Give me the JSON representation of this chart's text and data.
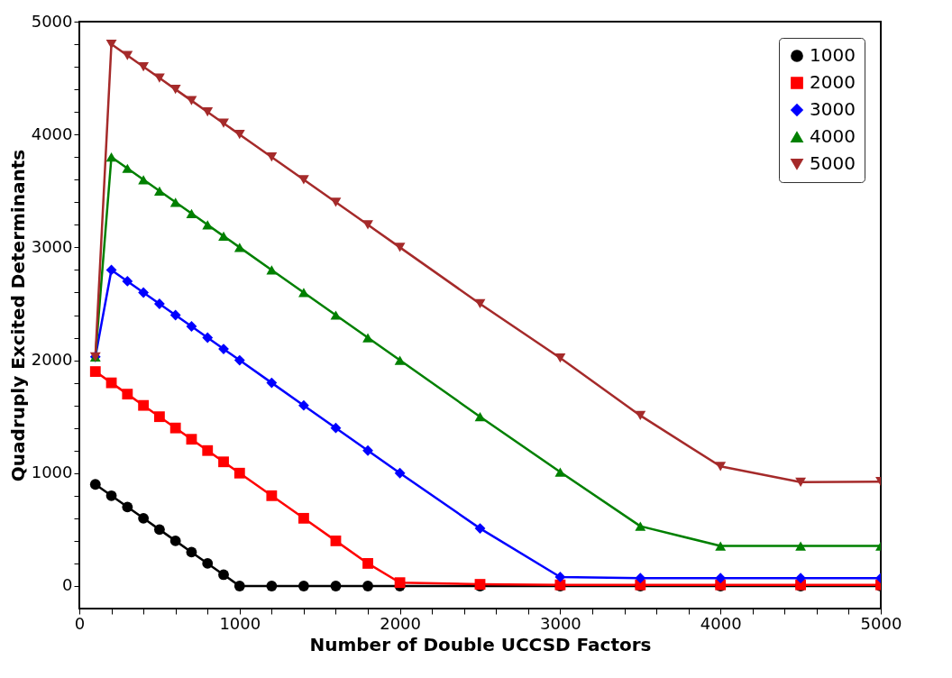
{
  "chart_data": {
    "type": "line",
    "xlabel": "Number of Double UCCSD Factors",
    "ylabel": "Quadruply Excited Determinants",
    "x": [
      100,
      200,
      300,
      400,
      500,
      600,
      700,
      800,
      900,
      1000,
      1200,
      1400,
      1600,
      1800,
      2000,
      2500,
      3000,
      3500,
      4000,
      4500,
      5000
    ],
    "series": [
      {
        "name": "1000",
        "color": "#000000",
        "marker": "circle",
        "values": [
          900,
          800,
          700,
          600,
          500,
          400,
          300,
          200,
          100,
          0,
          0,
          0,
          0,
          0,
          0,
          0,
          0,
          0,
          0,
          0,
          0
        ]
      },
      {
        "name": "2000",
        "color": "#ff0000",
        "marker": "square",
        "values": [
          1900,
          1800,
          1700,
          1600,
          1500,
          1400,
          1300,
          1200,
          1100,
          1000,
          800,
          600,
          400,
          200,
          30,
          15,
          10,
          10,
          10,
          10,
          10
        ]
      },
      {
        "name": "3000",
        "color": "#0000ff",
        "marker": "diamond",
        "values": [
          2030,
          2800,
          2700,
          2600,
          2500,
          2400,
          2300,
          2200,
          2100,
          2000,
          1800,
          1600,
          1400,
          1200,
          1000,
          510,
          80,
          70,
          70,
          70,
          70
        ]
      },
      {
        "name": "4000",
        "color": "#008000",
        "marker": "triangle",
        "values": [
          2030,
          3800,
          3700,
          3600,
          3500,
          3400,
          3300,
          3200,
          3100,
          3000,
          2800,
          2600,
          2400,
          2200,
          2000,
          1500,
          1010,
          530,
          355,
          355,
          355
        ]
      },
      {
        "name": "5000",
        "color": "#a52a2a",
        "marker": "triangle-down",
        "values": [
          2030,
          4800,
          4700,
          4600,
          4500,
          4400,
          4300,
          4200,
          4100,
          4000,
          3800,
          3600,
          3400,
          3200,
          3000,
          2500,
          2020,
          1510,
          1060,
          920,
          925
        ]
      }
    ],
    "xlim": [
      0,
      5000
    ],
    "xticks": [
      0,
      {
        "value": 200,
        "label": null
      },
      {
        "value": 400,
        "label": null
      },
      {
        "value": 600,
        "label": null
      },
      {
        "value": 800,
        "label": null
      },
      1000,
      {
        "value": 1200,
        "label": null
      },
      {
        "value": 1400,
        "label": null
      },
      {
        "value": 1600,
        "label": null
      },
      {
        "value": 1800,
        "label": null
      },
      2000,
      {
        "value": 2200,
        "label": null
      },
      {
        "value": 2400,
        "label": null
      },
      {
        "value": 2600,
        "label": null
      },
      {
        "value": 2800,
        "label": null
      },
      3000,
      {
        "value": 3200,
        "label": null
      },
      {
        "value": 3400,
        "label": null
      },
      {
        "value": 3600,
        "label": null
      },
      {
        "value": 3800,
        "label": null
      },
      4000,
      {
        "value": 4200,
        "label": null
      },
      {
        "value": 4400,
        "label": null
      },
      {
        "value": 4600,
        "label": null
      },
      {
        "value": 4800,
        "label": null
      },
      5000
    ],
    "ylim": [
      -200,
      5000
    ],
    "yticks": [
      0,
      {
        "value": 200,
        "label": null
      },
      {
        "value": 400,
        "label": null
      },
      {
        "value": 600,
        "label": null
      },
      {
        "value": 800,
        "label": null
      },
      1000,
      {
        "value": 1200,
        "label": null
      },
      {
        "value": 1400,
        "label": null
      },
      {
        "value": 1600,
        "label": null
      },
      {
        "value": 1800,
        "label": null
      },
      2000,
      {
        "value": 2200,
        "label": null
      },
      {
        "value": 2400,
        "label": null
      },
      {
        "value": 2600,
        "label": null
      },
      {
        "value": 2800,
        "label": null
      },
      3000,
      {
        "value": 3200,
        "label": null
      },
      {
        "value": 3400,
        "label": null
      },
      {
        "value": 3600,
        "label": null
      },
      {
        "value": 3800,
        "label": null
      },
      4000,
      {
        "value": 4200,
        "label": null
      },
      {
        "value": 4400,
        "label": null
      },
      {
        "value": 4600,
        "label": null
      },
      {
        "value": 4800,
        "label": null
      },
      5000
    ],
    "grid": false,
    "legend": "top right",
    "line_style": "solid"
  }
}
